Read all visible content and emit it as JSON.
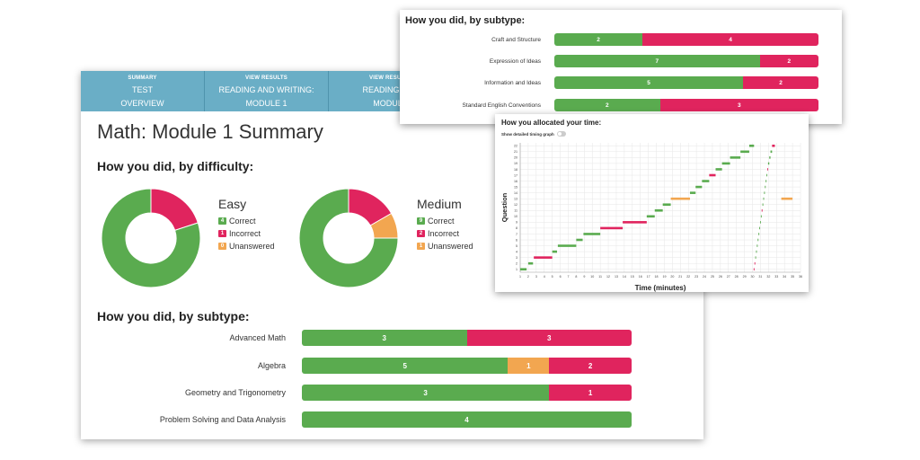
{
  "colors": {
    "correct": "#5aab4f",
    "incorrect": "#e0245e",
    "unanswered": "#f2a650",
    "nav": "#6aaec6"
  },
  "nav": {
    "tabs": [
      {
        "small": "SUMMARY",
        "line1": "TEST",
        "line2": "OVERVIEW"
      },
      {
        "small": "VIEW RESULTS",
        "line1": "READING AND WRITING:",
        "line2": "MODULE 1"
      },
      {
        "small": "VIEW RESULTS",
        "line1": "READING AND",
        "line2": "MODULE"
      }
    ]
  },
  "page_title": "Math: Module 1 Summary",
  "difficulty": {
    "heading": "How you did, by difficulty:",
    "groups": [
      {
        "label": "Easy",
        "correct": 4,
        "incorrect": 1,
        "unanswered": 0
      },
      {
        "label": "Medium",
        "correct": 9,
        "incorrect": 2,
        "unanswered": 1
      }
    ],
    "legend": {
      "correct": "Correct",
      "incorrect": "Incorrect",
      "unanswered": "Unanswered"
    }
  },
  "math_subtype": {
    "heading": "How you did, by subtype:",
    "rows": [
      {
        "label": "Advanced Math",
        "correct": 3,
        "unanswered": 0,
        "incorrect": 3
      },
      {
        "label": "Algebra",
        "correct": 5,
        "unanswered": 1,
        "incorrect": 2
      },
      {
        "label": "Geometry and Trigonometry",
        "correct": 3,
        "unanswered": 0,
        "incorrect": 1
      },
      {
        "label": "Problem Solving and Data Analysis",
        "correct": 4,
        "unanswered": 0,
        "incorrect": 0
      }
    ]
  },
  "rw_subtype": {
    "heading": "How you did, by subtype:",
    "rows": [
      {
        "label": "Craft and Structure",
        "correct": 2,
        "incorrect": 4
      },
      {
        "label": "Expression of Ideas",
        "correct": 7,
        "incorrect": 2
      },
      {
        "label": "Information and Ideas",
        "correct": 5,
        "incorrect": 2
      },
      {
        "label": "Standard English Conventions",
        "correct": 2,
        "incorrect": 3
      }
    ]
  },
  "timing": {
    "heading": "How you allocated your time:",
    "toggle_label": "Show detailed timing graph",
    "xlabel": "Time (minutes)",
    "ylabel": "Question",
    "x_ticks": [
      1,
      2,
      3,
      4,
      5,
      6,
      7,
      8,
      9,
      10,
      11,
      12,
      13,
      14,
      15,
      16,
      17,
      18,
      19,
      20,
      21,
      22,
      23,
      24,
      25,
      26,
      27,
      28,
      29,
      30,
      31,
      32,
      33,
      34,
      35,
      36
    ],
    "y_ticks": [
      1,
      2,
      3,
      4,
      5,
      6,
      7,
      8,
      9,
      10,
      11,
      12,
      13,
      14,
      15,
      16,
      17,
      18,
      19,
      20,
      21,
      22
    ]
  },
  "chart_data": {
    "type": "bar",
    "title": "How you allocated your time:",
    "xlabel": "Time (minutes)",
    "ylabel": "Question",
    "xlim": [
      1,
      36
    ],
    "ylim": [
      1,
      22
    ],
    "segments": [
      {
        "q": 1,
        "start": 1.0,
        "end": 1.8,
        "status": "correct"
      },
      {
        "q": 2,
        "start": 2.0,
        "end": 2.6,
        "status": "correct"
      },
      {
        "q": 3,
        "start": 2.7,
        "end": 5.0,
        "status": "incorrect"
      },
      {
        "q": 4,
        "start": 5.0,
        "end": 5.6,
        "status": "correct"
      },
      {
        "q": 5,
        "start": 5.7,
        "end": 8.0,
        "status": "correct"
      },
      {
        "q": 6,
        "start": 8.0,
        "end": 8.8,
        "status": "correct"
      },
      {
        "q": 7,
        "start": 8.9,
        "end": 11.0,
        "status": "correct"
      },
      {
        "q": 8,
        "start": 11.0,
        "end": 13.8,
        "status": "incorrect"
      },
      {
        "q": 9,
        "start": 13.8,
        "end": 16.8,
        "status": "incorrect"
      },
      {
        "q": 10,
        "start": 16.8,
        "end": 17.8,
        "status": "correct"
      },
      {
        "q": 11,
        "start": 17.8,
        "end": 18.8,
        "status": "correct"
      },
      {
        "q": 12,
        "start": 18.8,
        "end": 19.8,
        "status": "correct"
      },
      {
        "q": 13,
        "start": 19.8,
        "end": 22.2,
        "status": "unanswered"
      },
      {
        "q": 14,
        "start": 22.2,
        "end": 22.9,
        "status": "correct"
      },
      {
        "q": 15,
        "start": 22.9,
        "end": 23.7,
        "status": "correct"
      },
      {
        "q": 16,
        "start": 23.7,
        "end": 24.6,
        "status": "correct"
      },
      {
        "q": 17,
        "start": 24.6,
        "end": 25.4,
        "status": "incorrect"
      },
      {
        "q": 18,
        "start": 25.4,
        "end": 26.2,
        "status": "correct"
      },
      {
        "q": 19,
        "start": 26.2,
        "end": 27.2,
        "status": "correct"
      },
      {
        "q": 20,
        "start": 27.2,
        "end": 28.5,
        "status": "correct"
      },
      {
        "q": 21,
        "start": 28.5,
        "end": 29.6,
        "status": "correct"
      },
      {
        "q": 22,
        "start": 29.6,
        "end": 30.2,
        "status": "correct"
      },
      {
        "q": 1,
        "start": 30.15,
        "end": 30.25,
        "status": "incorrect"
      },
      {
        "q": 2,
        "start": 30.25,
        "end": 30.35,
        "status": "incorrect"
      },
      {
        "q": 3,
        "start": 30.35,
        "end": 30.45,
        "status": "correct"
      },
      {
        "q": 4,
        "start": 30.45,
        "end": 30.55,
        "status": "correct"
      },
      {
        "q": 5,
        "start": 30.55,
        "end": 30.65,
        "status": "correct"
      },
      {
        "q": 6,
        "start": 30.65,
        "end": 30.75,
        "status": "correct"
      },
      {
        "q": 7,
        "start": 30.75,
        "end": 30.85,
        "status": "correct"
      },
      {
        "q": 8,
        "start": 30.85,
        "end": 30.95,
        "status": "correct"
      },
      {
        "q": 9,
        "start": 30.95,
        "end": 31.05,
        "status": "correct"
      },
      {
        "q": 10,
        "start": 31.05,
        "end": 31.15,
        "status": "correct"
      },
      {
        "q": 11,
        "start": 31.15,
        "end": 31.25,
        "status": "incorrect"
      },
      {
        "q": 12,
        "start": 31.25,
        "end": 31.35,
        "status": "correct"
      },
      {
        "q": 13,
        "start": 31.35,
        "end": 31.45,
        "status": "correct"
      },
      {
        "q": 14,
        "start": 31.45,
        "end": 31.55,
        "status": "correct"
      },
      {
        "q": 15,
        "start": 31.55,
        "end": 31.65,
        "status": "correct"
      },
      {
        "q": 16,
        "start": 31.65,
        "end": 31.75,
        "status": "correct"
      },
      {
        "q": 17,
        "start": 31.75,
        "end": 31.85,
        "status": "correct"
      },
      {
        "q": 18,
        "start": 31.85,
        "end": 31.95,
        "status": "incorrect"
      },
      {
        "q": 19,
        "start": 31.95,
        "end": 32.1,
        "status": "correct"
      },
      {
        "q": 20,
        "start": 32.1,
        "end": 32.25,
        "status": "correct"
      },
      {
        "q": 21,
        "start": 32.25,
        "end": 32.45,
        "status": "correct"
      },
      {
        "q": 22,
        "start": 32.45,
        "end": 32.8,
        "status": "incorrect"
      },
      {
        "q": 13,
        "start": 33.6,
        "end": 35.0,
        "status": "unanswered"
      }
    ]
  }
}
